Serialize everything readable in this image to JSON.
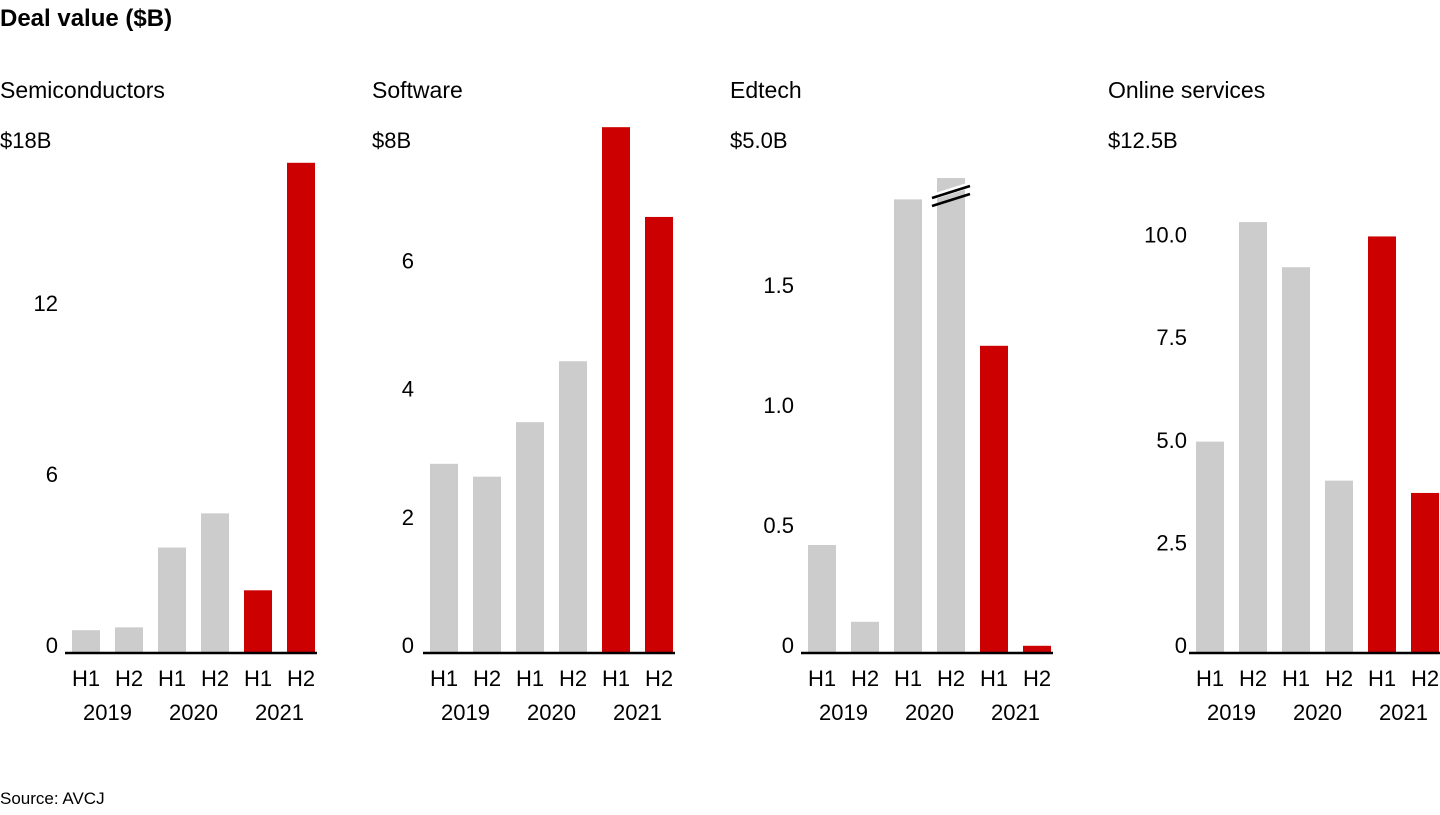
{
  "title": "Deal value ($B)",
  "source": "Source: AVCJ",
  "colors": {
    "past": "#cccccc",
    "current": "#cc0000",
    "axis": "#000000"
  },
  "chart_data": [
    {
      "type": "bar",
      "title": "Semiconductors",
      "categories": [
        "H1",
        "H2",
        "H1",
        "H2",
        "H1",
        "H2"
      ],
      "years": [
        "2019",
        "2020",
        "2021"
      ],
      "values": [
        0.8,
        0.9,
        3.7,
        4.9,
        2.2,
        17.2
      ],
      "highlight": [
        false,
        false,
        false,
        false,
        true,
        true
      ],
      "ylim": [
        0,
        18
      ],
      "yticks": [
        "0",
        "6",
        "12"
      ],
      "ytop_label": "$18B",
      "yticks_values": [
        0,
        6,
        12
      ]
    },
    {
      "type": "bar",
      "title": "Software",
      "categories": [
        "H1",
        "H2",
        "H1",
        "H2",
        "H1",
        "H2"
      ],
      "years": [
        "2019",
        "2020",
        "2021"
      ],
      "values": [
        2.95,
        2.75,
        3.6,
        4.55,
        8.2,
        6.8
      ],
      "highlight": [
        false,
        false,
        false,
        false,
        true,
        true
      ],
      "ylim": [
        0,
        8
      ],
      "yticks": [
        "0",
        "2",
        "4",
        "6"
      ],
      "ytop_label": "$8B",
      "yticks_values": [
        0,
        2,
        4,
        6
      ]
    },
    {
      "type": "bar",
      "title": "Edtech",
      "categories": [
        "H1",
        "H2",
        "H1",
        "H2",
        "H1",
        "H2"
      ],
      "years": [
        "2019",
        "2020",
        "2021"
      ],
      "values": [
        0.45,
        0.13,
        1.89,
        4.5,
        1.28,
        0.03
      ],
      "highlight": [
        false,
        false,
        false,
        false,
        true,
        true
      ],
      "axis_break": {
        "bar_index": 3
      },
      "ylim": [
        0,
        5.0
      ],
      "yticks": [
        "0",
        "0.5",
        "1.0",
        "1.5"
      ],
      "ytop_label": "$5.0B",
      "yticks_values": [
        0,
        0.5,
        1.0,
        1.5
      ]
    },
    {
      "type": "bar",
      "title": "Online services",
      "categories": [
        "H1",
        "H2",
        "H1",
        "H2",
        "H1",
        "H2"
      ],
      "years": [
        "2019",
        "2020",
        "2021"
      ],
      "values": [
        5.15,
        10.5,
        9.4,
        4.2,
        10.15,
        3.9
      ],
      "highlight": [
        false,
        false,
        false,
        false,
        true,
        true
      ],
      "ylim": [
        0,
        12.5
      ],
      "yticks": [
        "0",
        "2.5",
        "5.0",
        "7.5",
        "10.0"
      ],
      "ytop_label": "$12.5B",
      "yticks_values": [
        0,
        2.5,
        5,
        7.5,
        10
      ]
    }
  ]
}
